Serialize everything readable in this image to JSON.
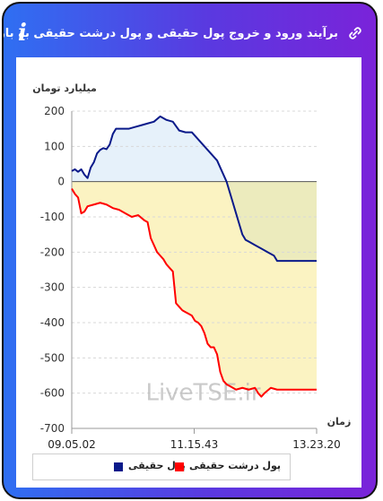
{
  "header": {
    "title": "برآیند ورود و خروج پول حقیقی و پول درشت حقیقی به بازار",
    "info_icon": "info-icon",
    "link_icon": "link-icon"
  },
  "colors": {
    "real_money": "#0a1a8a",
    "big_real_money": "#ff0000",
    "positive_fill": "#e6f1fa",
    "negative_fill": "#fbf3c2",
    "overlap_fill": "#ecebbd"
  },
  "watermark": "LiveTSE.ir",
  "chart_data": {
    "type": "line",
    "ylabel": "میلیارد تومان",
    "xlabel": "زمان",
    "ylim": [
      -700,
      200
    ],
    "yticks": [
      200,
      100,
      0,
      -100,
      -200,
      -300,
      -400,
      -500,
      -600,
      -700
    ],
    "xticks": [
      "09.05.02",
      "11.15.43",
      "13.23.20"
    ],
    "grid": true,
    "legend_position": "bottom",
    "series": [
      {
        "name": "پول حقیقی",
        "color": "#0a1a8a",
        "points": [
          [
            0,
            30
          ],
          [
            2,
            35
          ],
          [
            4,
            28
          ],
          [
            6,
            35
          ],
          [
            8,
            20
          ],
          [
            10,
            10
          ],
          [
            12,
            40
          ],
          [
            14,
            55
          ],
          [
            16,
            80
          ],
          [
            18,
            90
          ],
          [
            20,
            95
          ],
          [
            22,
            92
          ],
          [
            24,
            105
          ],
          [
            26,
            135
          ],
          [
            28,
            150
          ],
          [
            32,
            150
          ],
          [
            36,
            150
          ],
          [
            40,
            155
          ],
          [
            44,
            160
          ],
          [
            48,
            165
          ],
          [
            52,
            170
          ],
          [
            56,
            185
          ],
          [
            60,
            175
          ],
          [
            64,
            170
          ],
          [
            68,
            145
          ],
          [
            72,
            140
          ],
          [
            76,
            140
          ],
          [
            80,
            120
          ],
          [
            84,
            100
          ],
          [
            88,
            80
          ],
          [
            92,
            60
          ],
          [
            94,
            40
          ],
          [
            96,
            20
          ],
          [
            98,
            0
          ],
          [
            100,
            -30
          ],
          [
            102,
            -60
          ],
          [
            104,
            -90
          ],
          [
            106,
            -120
          ],
          [
            108,
            -150
          ],
          [
            110,
            -165
          ],
          [
            112,
            -170
          ],
          [
            116,
            -180
          ],
          [
            120,
            -190
          ],
          [
            124,
            -200
          ],
          [
            128,
            -210
          ],
          [
            130,
            -225
          ],
          [
            134,
            -225
          ],
          [
            140,
            -225
          ],
          [
            148,
            -225
          ],
          [
            155,
            -225
          ]
        ]
      },
      {
        "name": "پول درشت حقیقی",
        "color": "#ff0000",
        "points": [
          [
            0,
            -20
          ],
          [
            2,
            -35
          ],
          [
            4,
            -45
          ],
          [
            6,
            -90
          ],
          [
            8,
            -85
          ],
          [
            10,
            -70
          ],
          [
            14,
            -65
          ],
          [
            18,
            -60
          ],
          [
            22,
            -65
          ],
          [
            26,
            -75
          ],
          [
            30,
            -80
          ],
          [
            34,
            -90
          ],
          [
            38,
            -100
          ],
          [
            42,
            -95
          ],
          [
            46,
            -110
          ],
          [
            48,
            -115
          ],
          [
            50,
            -160
          ],
          [
            52,
            -180
          ],
          [
            54,
            -200
          ],
          [
            56,
            -210
          ],
          [
            58,
            -220
          ],
          [
            60,
            -235
          ],
          [
            62,
            -245
          ],
          [
            64,
            -255
          ],
          [
            66,
            -345
          ],
          [
            68,
            -355
          ],
          [
            70,
            -365
          ],
          [
            72,
            -370
          ],
          [
            74,
            -375
          ],
          [
            76,
            -380
          ],
          [
            78,
            -395
          ],
          [
            80,
            -400
          ],
          [
            82,
            -410
          ],
          [
            84,
            -430
          ],
          [
            86,
            -460
          ],
          [
            88,
            -470
          ],
          [
            90,
            -470
          ],
          [
            92,
            -490
          ],
          [
            94,
            -540
          ],
          [
            96,
            -565
          ],
          [
            98,
            -575
          ],
          [
            100,
            -580
          ],
          [
            104,
            -590
          ],
          [
            108,
            -585
          ],
          [
            112,
            -590
          ],
          [
            116,
            -585
          ],
          [
            118,
            -600
          ],
          [
            120,
            -610
          ],
          [
            122,
            -600
          ],
          [
            126,
            -585
          ],
          [
            130,
            -590
          ],
          [
            140,
            -590
          ],
          [
            150,
            -590
          ],
          [
            155,
            -590
          ]
        ]
      }
    ]
  }
}
